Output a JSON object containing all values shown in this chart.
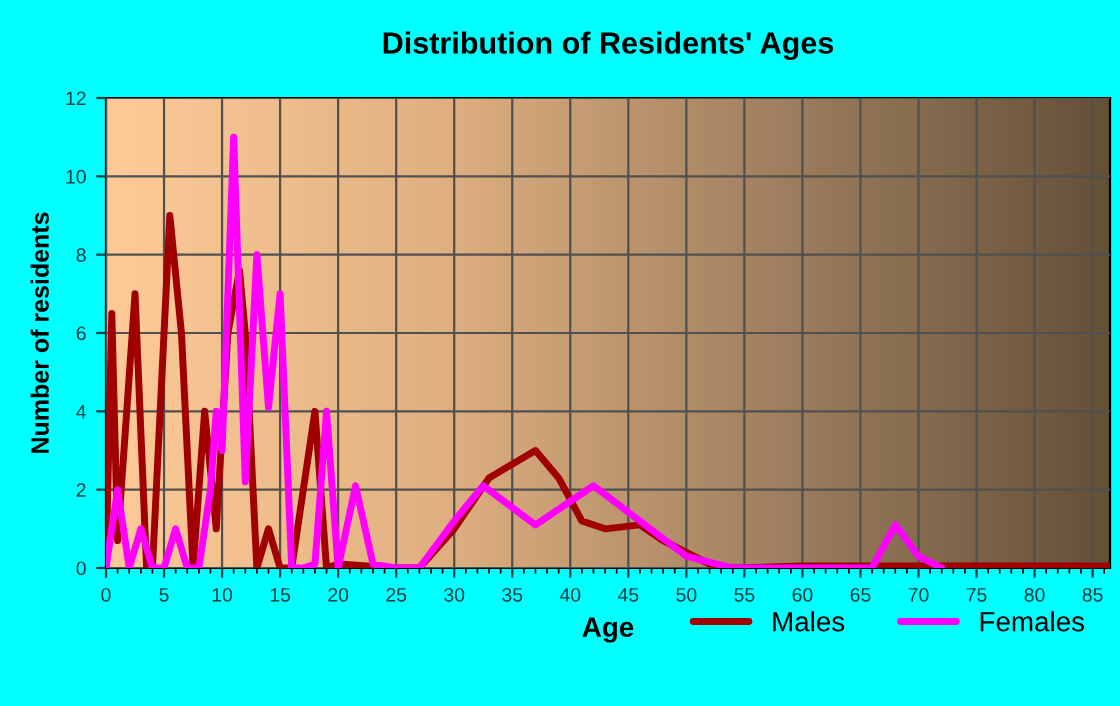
{
  "chart_data": {
    "type": "line",
    "title": "Distribution of Residents' Ages",
    "xlabel": "Age",
    "ylabel": "Number of residents",
    "xlim": [
      0,
      86.5
    ],
    "ylim": [
      0,
      12
    ],
    "xticks": [
      0,
      5,
      10,
      15,
      20,
      25,
      30,
      35,
      40,
      45,
      50,
      55,
      60,
      65,
      70,
      75,
      80,
      85
    ],
    "yticks": [
      0,
      2,
      4,
      6,
      8,
      10,
      12
    ],
    "grid": true,
    "legend": "bottom right",
    "marker": "none",
    "line_style": "solid",
    "series": [
      {
        "name": "Males",
        "color": "#a00000",
        "x": [
          0,
          0.5,
          1,
          2.5,
          3.5,
          4,
          5.5,
          6.5,
          7.5,
          8.5,
          9.5,
          10.5,
          11.5,
          12,
          13,
          14,
          15,
          16,
          18,
          19,
          20,
          25,
          27,
          30,
          33,
          37,
          39,
          41,
          43,
          46,
          48,
          52,
          54,
          60,
          86.5
        ],
        "values": [
          0,
          6.5,
          0.7,
          7,
          0,
          0,
          9,
          6,
          0,
          4,
          1,
          6,
          7.6,
          6,
          0,
          1,
          0,
          0,
          4,
          0,
          0.1,
          0,
          0,
          1,
          2.3,
          3,
          2.3,
          1.2,
          1,
          1.1,
          0.7,
          0.1,
          0,
          0.05,
          0.05
        ]
      },
      {
        "name": "Females",
        "color": "#ff00ff",
        "x": [
          0,
          1,
          2,
          3,
          4,
          5,
          6,
          7,
          8,
          9,
          9.5,
          10,
          11,
          12,
          13,
          14,
          15,
          16,
          17,
          18,
          19,
          20,
          21.5,
          23,
          25,
          27,
          30,
          32.5,
          37,
          42,
          46,
          50,
          54,
          65,
          66,
          68,
          70,
          72
        ],
        "values": [
          0,
          2,
          0,
          1,
          0,
          0,
          1,
          0,
          0,
          2,
          4,
          3,
          11,
          2.2,
          8,
          4.1,
          7,
          0,
          0,
          0.1,
          4,
          0,
          2.1,
          0.1,
          0,
          0,
          1.2,
          2.1,
          1.1,
          2.1,
          1.2,
          0.3,
          0,
          0,
          0,
          1.1,
          0.3,
          0
        ]
      }
    ]
  }
}
